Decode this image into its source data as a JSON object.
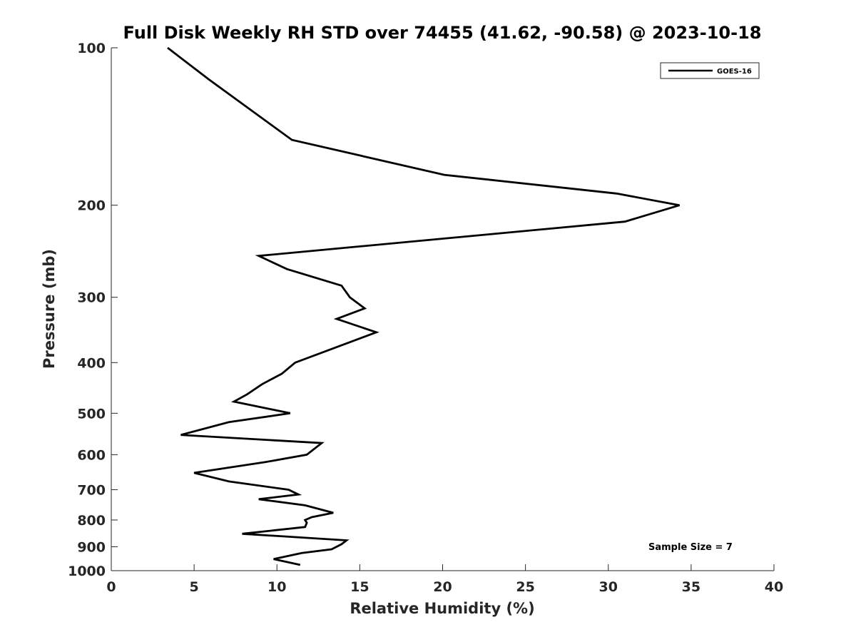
{
  "chart_data": {
    "type": "line",
    "title": "Full Disk Weekly RH STD over 74455 (41.62, -90.58) @ 2023-10-18",
    "xlabel": "Relative Humidity (%)",
    "ylabel": "Pressure (mb)",
    "xlim": [
      0,
      40
    ],
    "ylim": [
      100,
      1000
    ],
    "y_scale": "log",
    "y_reversed": true,
    "x_ticks": [
      0,
      5,
      10,
      15,
      20,
      25,
      30,
      35,
      40
    ],
    "x_tick_labels": [
      "0",
      "5",
      "10",
      "15",
      "20",
      "25",
      "30",
      "35",
      "40"
    ],
    "y_ticks": [
      100,
      200,
      300,
      400,
      500,
      600,
      700,
      800,
      900,
      1000
    ],
    "y_tick_labels": [
      "100",
      "200",
      "300",
      "400",
      "500",
      "600",
      "700",
      "800",
      "900",
      "1000"
    ],
    "grid": false,
    "legend_position": "top-right",
    "series": [
      {
        "name": "GOES-16",
        "color": "#000000",
        "x": [
          3.4,
          5.9,
          10.9,
          20.1,
          30.5,
          34.3,
          31.0,
          8.9,
          10.6,
          13.9,
          14.4,
          15.3,
          13.6,
          16.0,
          11.1,
          10.3,
          9.1,
          8.2,
          7.4,
          10.8,
          7.1,
          4.2,
          12.7,
          11.8,
          9.3,
          5.0,
          7.1,
          10.7,
          11.3,
          8.9,
          11.7,
          13.4,
          12.1,
          11.7,
          11.8,
          11.7,
          7.9,
          14.2,
          13.9,
          13.3,
          11.5,
          9.8,
          11.4
        ],
        "y": [
          100,
          115,
          150,
          175,
          190,
          200,
          215,
          250,
          265,
          285,
          300,
          315,
          330,
          350,
          400,
          420,
          440,
          460,
          475,
          500,
          520,
          550,
          570,
          600,
          620,
          650,
          675,
          700,
          715,
          730,
          750,
          775,
          790,
          800,
          810,
          825,
          850,
          875,
          890,
          910,
          925,
          950,
          975
        ]
      }
    ],
    "legend_label": "GOES-16",
    "annotation": "Sample Size = 7"
  }
}
